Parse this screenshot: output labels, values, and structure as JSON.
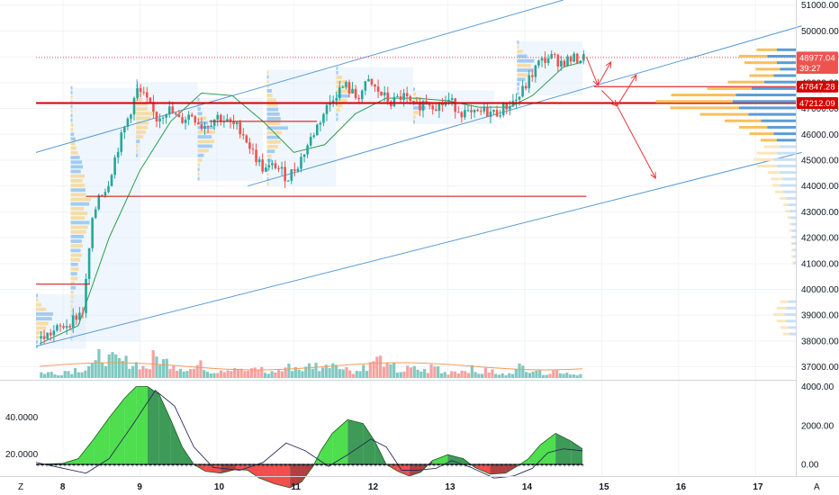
{
  "chart_data": [
    {
      "type": "candlestick",
      "role": "price-pane",
      "ylim": [
        36500,
        51200
      ],
      "y_ticks": [
        37000,
        38000,
        39000,
        40000,
        41000,
        42000,
        43000,
        44000,
        45000,
        46000,
        47000,
        48000,
        49000,
        50000,
        51000
      ],
      "y_tick_labels": [
        "37000.00",
        "38000.00",
        "39000.00",
        "40000.00",
        "41000.00",
        "42000.00",
        "43000.00",
        "44000.00",
        "45000.00",
        "46000.00",
        "47000.00",
        "48000.00",
        "49000.00",
        "50000.00",
        "51000.00"
      ],
      "x_ticks": [
        8,
        9,
        10,
        11,
        12,
        13,
        14,
        15,
        16,
        17
      ],
      "x_tick_labels": [
        "8",
        "9",
        "10",
        "11",
        "12",
        "13",
        "14",
        "15",
        "16",
        "17"
      ],
      "xlim": [
        7.65,
        17.6
      ],
      "price_path": [
        [
          7.7,
          38100
        ],
        [
          7.95,
          38500
        ],
        [
          8.1,
          38800
        ],
        [
          8.25,
          39200
        ],
        [
          8.35,
          42300
        ],
        [
          8.45,
          43700
        ],
        [
          8.55,
          43900
        ],
        [
          8.7,
          45500
        ],
        [
          8.85,
          46800
        ],
        [
          8.95,
          47700
        ],
        [
          9.05,
          47400
        ],
        [
          9.2,
          46600
        ],
        [
          9.35,
          47000
        ],
        [
          9.5,
          46500
        ],
        [
          9.65,
          46800
        ],
        [
          9.8,
          46300
        ],
        [
          10.0,
          46700
        ],
        [
          10.15,
          46400
        ],
        [
          10.3,
          46200
        ],
        [
          10.45,
          45300
        ],
        [
          10.6,
          44600
        ],
        [
          10.75,
          44800
        ],
        [
          10.9,
          44300
        ],
        [
          11.05,
          44900
        ],
        [
          11.2,
          45800
        ],
        [
          11.35,
          46700
        ],
        [
          11.5,
          47500
        ],
        [
          11.65,
          47900
        ],
        [
          11.8,
          47400
        ],
        [
          11.95,
          48000
        ],
        [
          12.1,
          47600
        ],
        [
          12.25,
          47200
        ],
        [
          12.4,
          47500
        ],
        [
          12.55,
          47000
        ],
        [
          12.7,
          47300
        ],
        [
          12.85,
          47100
        ],
        [
          13.0,
          47300
        ],
        [
          13.15,
          46900
        ],
        [
          13.3,
          46700
        ],
        [
          13.45,
          46900
        ],
        [
          13.6,
          46800
        ],
        [
          13.75,
          47100
        ],
        [
          13.9,
          47400
        ],
        [
          14.0,
          47900
        ],
        [
          14.15,
          48700
        ],
        [
          14.3,
          49000
        ],
        [
          14.45,
          48800
        ],
        [
          14.6,
          48900
        ],
        [
          14.75,
          48950
        ]
      ],
      "moving_average": [
        [
          7.7,
          37900
        ],
        [
          8.2,
          38600
        ],
        [
          8.6,
          42000
        ],
        [
          9.0,
          44600
        ],
        [
          9.4,
          46500
        ],
        [
          9.8,
          47600
        ],
        [
          10.2,
          47500
        ],
        [
          10.6,
          46500
        ],
        [
          11.0,
          45300
        ],
        [
          11.4,
          45600
        ],
        [
          11.8,
          46800
        ],
        [
          12.2,
          47400
        ],
        [
          12.6,
          47400
        ],
        [
          13.0,
          47300
        ],
        [
          13.4,
          47050
        ],
        [
          13.8,
          47050
        ],
        [
          14.1,
          47500
        ],
        [
          14.5,
          48600
        ],
        [
          14.75,
          48800
        ]
      ],
      "volume": [
        0.15,
        0.1,
        0.2,
        0.25,
        0.35,
        0.6,
        0.5,
        0.45,
        0.4,
        0.3,
        0.55,
        0.45,
        0.3,
        0.25,
        0.35,
        0.2,
        0.25,
        0.3,
        0.2,
        0.25,
        0.15,
        0.2,
        0.3,
        0.25,
        0.35,
        0.3,
        0.45,
        0.25,
        0.2,
        0.35,
        0.5,
        0.3,
        0.2,
        0.25,
        0.2,
        0.3,
        0.15,
        0.2,
        0.25,
        0.15,
        0.2,
        0.1,
        0.2,
        0.3,
        0.25,
        0.15,
        0.2,
        0.15,
        0.1
      ],
      "horizontal_levels": [
        {
          "name": "resistance-1",
          "price": 47212.09,
          "x_from": 7.65,
          "x_to": 17.6,
          "color": "#d50000",
          "width": 2
        },
        {
          "name": "resistance-2",
          "price": 47847.28,
          "x_from": 14.9,
          "x_to": 17.6,
          "color": "#d50000",
          "width": 1
        },
        {
          "name": "support-43600",
          "price": 43600,
          "x_from": 8.3,
          "x_to": 14.8,
          "color": "#d50000",
          "width": 1
        },
        {
          "name": "support-40200",
          "price": 40200,
          "x_from": 7.65,
          "x_to": 8.35,
          "color": "#d50000",
          "width": 1
        },
        {
          "name": "mid-46500",
          "price": 46500,
          "x_from": 9.9,
          "x_to": 11.3,
          "color": "#d50000",
          "width": 1
        }
      ],
      "trend_lines": [
        {
          "name": "channel-upper",
          "from": [
            7.65,
            45300
          ],
          "to": [
            14.5,
            51200
          ],
          "color": "#5b9bd5"
        },
        {
          "name": "channel-middle",
          "from": [
            10.4,
            44000
          ],
          "to": [
            17.6,
            50200
          ],
          "color": "#5b9bd5"
        },
        {
          "name": "channel-lower",
          "from": [
            7.65,
            37800
          ],
          "to": [
            17.6,
            45300
          ],
          "color": "#5b9bd5"
        }
      ],
      "projection_arrows": [
        {
          "from": [
            14.8,
            49000
          ],
          "to": [
            14.95,
            47900
          ]
        },
        {
          "from": [
            14.95,
            47900
          ],
          "to": [
            15.12,
            48800
          ]
        },
        {
          "from": [
            15.0,
            47700
          ],
          "to": [
            15.2,
            47100
          ]
        },
        {
          "from": [
            15.2,
            47100
          ],
          "to": [
            15.45,
            48300
          ]
        },
        {
          "from": [
            15.2,
            47100
          ],
          "to": [
            15.7,
            44300
          ]
        }
      ],
      "price_tags": [
        {
          "label": "48977.04",
          "price": 48977.04,
          "color": "#ef5350"
        },
        {
          "label": "39:27",
          "price": 48570,
          "color": "#ef5350"
        },
        {
          "label": "47847.28",
          "price": 47847.28,
          "color": "#d50000"
        },
        {
          "label": "47212.09",
          "price": 47212.09,
          "color": "#d50000"
        }
      ],
      "volume_profile_right": [
        {
          "price": 49200,
          "buy": 0.3,
          "sell": 0.25
        },
        {
          "price": 48950,
          "buy": 0.45,
          "sell": 0.35
        },
        {
          "price": 48700,
          "buy": 0.3,
          "sell": 0.4
        },
        {
          "price": 48450,
          "buy": 0.25,
          "sell": 0.3
        },
        {
          "price": 48200,
          "buy": 0.35,
          "sell": 0.3
        },
        {
          "price": 47950,
          "buy": 0.5,
          "sell": 0.45
        },
        {
          "price": 47700,
          "buy": 0.7,
          "sell": 0.55
        },
        {
          "price": 47450,
          "buy": 0.95,
          "sell": 0.8
        },
        {
          "price": 47200,
          "buy": 1.0,
          "sell": 0.95
        },
        {
          "price": 46950,
          "buy": 0.9,
          "sell": 0.85
        },
        {
          "price": 46700,
          "buy": 0.75,
          "sell": 0.6
        },
        {
          "price": 46450,
          "buy": 0.55,
          "sell": 0.45
        },
        {
          "price": 46200,
          "buy": 0.45,
          "sell": 0.35
        },
        {
          "price": 45950,
          "buy": 0.35,
          "sell": 0.3
        },
        {
          "price": 45700,
          "buy": 0.3,
          "sell": 0.2
        },
        {
          "price": 45450,
          "buy": 0.25,
          "sell": 0.2
        },
        {
          "price": 45200,
          "buy": 0.3,
          "sell": 0.25
        },
        {
          "price": 44950,
          "buy": 0.35,
          "sell": 0.25
        },
        {
          "price": 44700,
          "buy": 0.3,
          "sell": 0.25
        },
        {
          "price": 44450,
          "buy": 0.25,
          "sell": 0.15
        },
        {
          "price": 44200,
          "buy": 0.2,
          "sell": 0.15
        },
        {
          "price": 43950,
          "buy": 0.25,
          "sell": 0.1
        },
        {
          "price": 43700,
          "buy": 0.2,
          "sell": 0.1
        },
        {
          "price": 43450,
          "buy": 0.15,
          "sell": 0.08
        },
        {
          "price": 43200,
          "buy": 0.12,
          "sell": 0.06
        },
        {
          "price": 42950,
          "buy": 0.1,
          "sell": 0.05
        },
        {
          "price": 42700,
          "buy": 0.08,
          "sell": 0.04
        },
        {
          "price": 42450,
          "buy": 0.06,
          "sell": 0.03
        },
        {
          "price": 42200,
          "buy": 0.06,
          "sell": 0.03
        },
        {
          "price": 41950,
          "buy": 0.05,
          "sell": 0.02
        },
        {
          "price": 41700,
          "buy": 0.05,
          "sell": 0.02
        },
        {
          "price": 41450,
          "buy": 0.04,
          "sell": 0.02
        },
        {
          "price": 41200,
          "buy": 0.04,
          "sell": 0.02
        },
        {
          "price": 40950,
          "buy": 0.04,
          "sell": 0.01
        },
        {
          "price": 39450,
          "buy": 0.12,
          "sell": 0.1
        },
        {
          "price": 39200,
          "buy": 0.15,
          "sell": 0.12
        },
        {
          "price": 38950,
          "buy": 0.18,
          "sell": 0.14
        },
        {
          "price": 38700,
          "buy": 0.15,
          "sell": 0.12
        },
        {
          "price": 38450,
          "buy": 0.12,
          "sell": 0.1
        },
        {
          "price": 38200,
          "buy": 0.1,
          "sell": 0.08
        }
      ],
      "colors": {
        "up": "#26a69a",
        "down": "#ef5350",
        "moving_average": "#2e9e4f",
        "channel": "#5b9bd5",
        "levels": "#d50000",
        "profile_buy": "#5b9bd5",
        "profile_sell": "#f7c05d",
        "grid": "#f0f3fa"
      }
    },
    {
      "type": "area",
      "role": "indicator-pane",
      "ylim": [
        -600,
        4300
      ],
      "y_ticks": [
        0,
        2000,
        4000
      ],
      "y_tick_labels": [
        "0.00",
        "2000.00",
        "4000.00"
      ],
      "left_labels": [
        "40.0000",
        "20.0000"
      ],
      "histogram": [
        [
          7.65,
          0
        ],
        [
          8.0,
          50
        ],
        [
          8.2,
          300
        ],
        [
          8.4,
          1300
        ],
        [
          8.6,
          2400
        ],
        [
          8.8,
          3400
        ],
        [
          8.95,
          4000
        ],
        [
          9.1,
          4000
        ],
        [
          9.25,
          3600
        ],
        [
          9.4,
          2300
        ],
        [
          9.55,
          900
        ],
        [
          9.7,
          0
        ],
        [
          9.85,
          -350
        ],
        [
          10.05,
          -450
        ],
        [
          10.25,
          -250
        ],
        [
          10.4,
          -300
        ],
        [
          10.55,
          -700
        ],
        [
          10.75,
          -1000
        ],
        [
          10.95,
          -1200
        ],
        [
          11.1,
          -900
        ],
        [
          11.25,
          -100
        ],
        [
          11.35,
          700
        ],
        [
          11.5,
          1600
        ],
        [
          11.7,
          2300
        ],
        [
          11.9,
          2100
        ],
        [
          12.05,
          1200
        ],
        [
          12.2,
          0
        ],
        [
          12.35,
          -350
        ],
        [
          12.5,
          -600
        ],
        [
          12.65,
          -400
        ],
        [
          12.8,
          200
        ],
        [
          13.0,
          500
        ],
        [
          13.2,
          300
        ],
        [
          13.35,
          -150
        ],
        [
          13.55,
          -500
        ],
        [
          13.75,
          -450
        ],
        [
          13.9,
          -100
        ],
        [
          14.05,
          300
        ],
        [
          14.2,
          1000
        ],
        [
          14.4,
          1600
        ],
        [
          14.6,
          1200
        ],
        [
          14.75,
          800
        ]
      ],
      "signal": [
        [
          7.65,
          100
        ],
        [
          8.0,
          -200
        ],
        [
          8.3,
          -450
        ],
        [
          8.6,
          300
        ],
        [
          8.9,
          2000
        ],
        [
          9.2,
          3800
        ],
        [
          9.45,
          3000
        ],
        [
          9.7,
          900
        ],
        [
          9.95,
          -150
        ],
        [
          10.3,
          -300
        ],
        [
          10.6,
          100
        ],
        [
          10.9,
          1100
        ],
        [
          11.15,
          700
        ],
        [
          11.45,
          -100
        ],
        [
          11.7,
          500
        ],
        [
          12.0,
          1300
        ],
        [
          12.2,
          900
        ],
        [
          12.4,
          -300
        ],
        [
          12.6,
          -300
        ],
        [
          12.85,
          -200
        ],
        [
          13.05,
          200
        ],
        [
          13.3,
          -150
        ],
        [
          13.6,
          -700
        ],
        [
          13.85,
          -600
        ],
        [
          14.1,
          -200
        ],
        [
          14.3,
          600
        ],
        [
          14.5,
          800
        ],
        [
          14.75,
          700
        ]
      ],
      "colors": {
        "positive": "#2fd82f",
        "positive_dark": "#1b8a3a",
        "negative": "#ef2f2f",
        "negative_dark": "#a51e1e",
        "signal": "#2b2b5e"
      }
    }
  ],
  "ui": {
    "corner_left_label": "Z",
    "corner_right_label": "A"
  }
}
